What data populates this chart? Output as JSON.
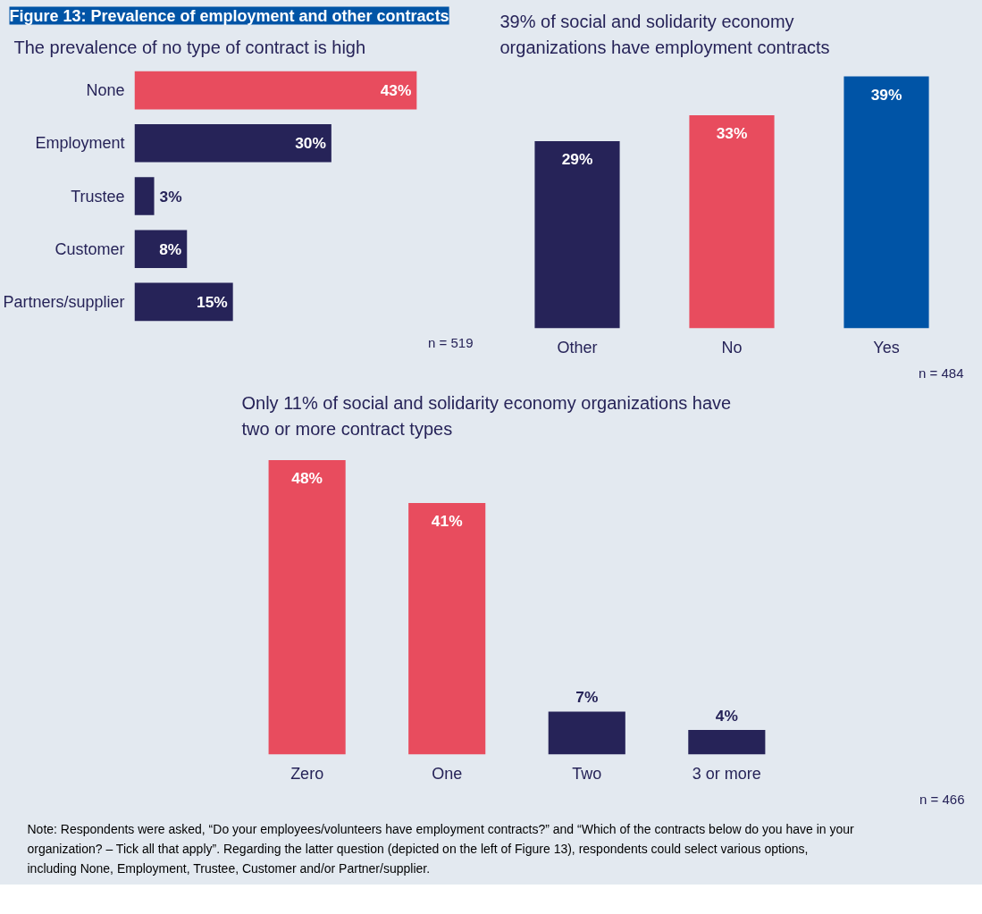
{
  "chart_data": [
    {
      "type": "bar",
      "orientation": "horizontal",
      "title": "Figure 13: Prevalence of employment and other contracts",
      "subtitle": "The prevalence of no type of contract is high",
      "categories": [
        "None",
        "Employment",
        "Trustee",
        "Customer",
        "Partners/supplier"
      ],
      "values": [
        43,
        30,
        3,
        8,
        15
      ],
      "value_labels": [
        "43%",
        "30%",
        "3%",
        "8%",
        "15%"
      ],
      "colors": [
        "#e84c5e",
        "#262358",
        "#262358",
        "#262358",
        "#262358"
      ],
      "tick_labels": "y",
      "grid": false,
      "annotations": [
        "n = 519"
      ]
    },
    {
      "type": "bar",
      "title": "39% of social and solidarity economy organizations have employment contracts",
      "categories": [
        "Other",
        "No",
        "Yes"
      ],
      "values": [
        29,
        33,
        39
      ],
      "value_labels": [
        "29%",
        "33%",
        "39%"
      ],
      "colors": [
        "#262358",
        "#e84c5e",
        "#0054a6"
      ],
      "tick_labels": "x",
      "grid": false,
      "annotations": [
        "n = 484"
      ]
    },
    {
      "type": "bar",
      "title": "Only 11% of social and solidarity economy organizations have two or more contract types",
      "categories": [
        "Zero",
        "One",
        "Two",
        "3 or more"
      ],
      "values": [
        48,
        41,
        7,
        4
      ],
      "value_labels": [
        "48%",
        "41%",
        "7%",
        "4%"
      ],
      "colors": [
        "#e84c5e",
        "#e84c5e",
        "#262358",
        "#262358"
      ],
      "tick_labels": "x",
      "grid": false,
      "annotations": [
        "n = 466",
        "Note: Respondents were asked, “Do your employees/volunteers have employment contracts?” and “Which of the contracts below do you have in your organization? – Tick all that apply”. Regarding the latter question (depicted on the left of Figure 13), respondents could select various options, including None, Employment, Trustee, Customer and/or Partner/supplier."
      ]
    }
  ]
}
